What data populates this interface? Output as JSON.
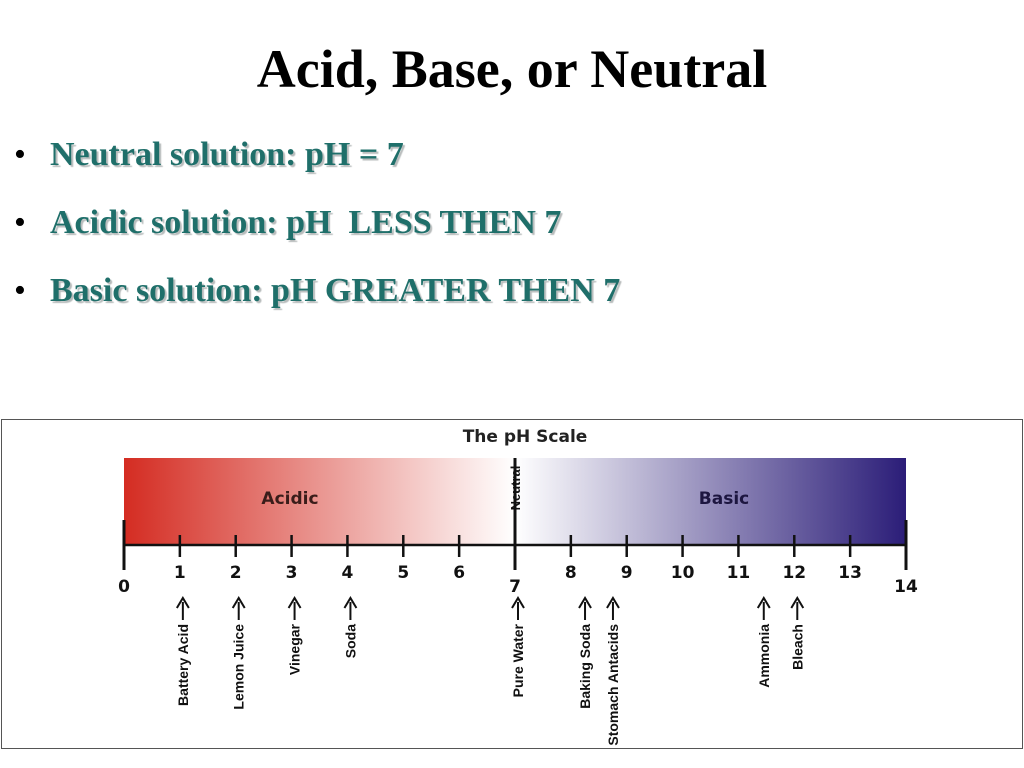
{
  "slide": {
    "title": "Acid, Base, or Neutral",
    "bullets": [
      "Neutral solution: pH = 7",
      "Acidic solution: pH  LESS THEN 7",
      "Basic solution: pH GREATER THEN 7"
    ]
  },
  "scale": {
    "title": "The pH Scale",
    "region_acidic": "Acidic",
    "region_basic": "Basic",
    "neutral_label": "Neutral",
    "min": 0,
    "max": 14,
    "ticks": [
      "0",
      "1",
      "2",
      "3",
      "4",
      "5",
      "6",
      "7",
      "8",
      "9",
      "10",
      "11",
      "12",
      "13",
      "14"
    ],
    "colors": {
      "acid": "#d42c22",
      "neutral": "#ffffff",
      "base": "#2b1d78"
    },
    "substances": [
      {
        "name": "Battery Acid",
        "ph": 1
      },
      {
        "name": "Lemon Juice",
        "ph": 2
      },
      {
        "name": "Vinegar",
        "ph": 3
      },
      {
        "name": "Soda",
        "ph": 4
      },
      {
        "name": "Pure Water",
        "ph": 7
      },
      {
        "name": "Baking Soda",
        "ph": 8.2
      },
      {
        "name": "Stomach Antacids",
        "ph": 8.7
      },
      {
        "name": "Ammonia",
        "ph": 11.4
      },
      {
        "name": "Bleach",
        "ph": 12
      }
    ]
  }
}
